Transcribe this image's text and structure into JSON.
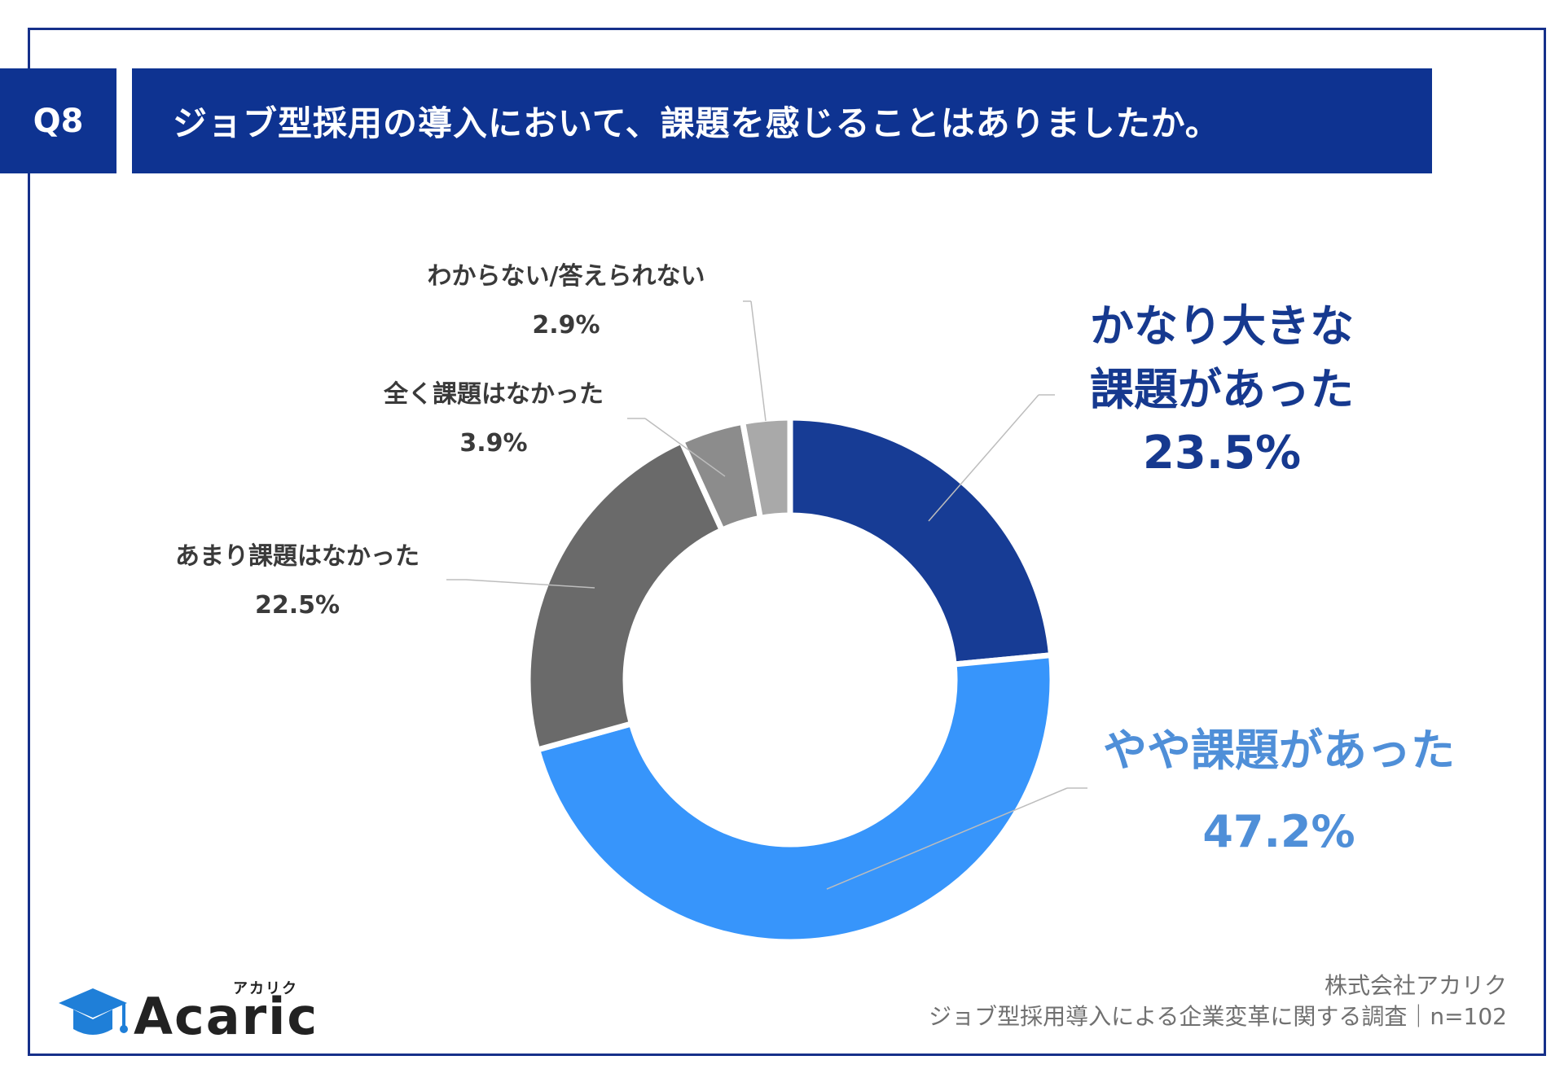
{
  "header": {
    "q_label": "Q8",
    "title": "ジョブ型採用の導入において、課題を感じることはありましたか。"
  },
  "chart_data": {
    "type": "pie",
    "variant": "donut",
    "title": "ジョブ型採用の導入において、課題を感じることはありましたか。",
    "start_angle_deg": 0,
    "direction": "clockwise",
    "slices": [
      {
        "name": "かなり大きな課題があった",
        "value": 23.5,
        "value_label": "23.5%",
        "color": "#173c95"
      },
      {
        "name": "やや課題があった",
        "value": 47.2,
        "value_label": "47.2%",
        "color": "#3795fb"
      },
      {
        "name": "あまり課題はなかった",
        "value": 22.5,
        "value_label": "22.5%",
        "color": "#6a6a6a"
      },
      {
        "name": "全く課題はなかった",
        "value": 3.9,
        "value_label": "3.9%",
        "color": "#8c8c8c"
      },
      {
        "name": "わからない/答えられない",
        "value": 2.9,
        "value_label": "2.9%",
        "color": "#a9a9a9"
      }
    ],
    "labels": {
      "s0": {
        "line1": "かなり大きな",
        "line2": "課題があった",
        "pct": "23.5%"
      },
      "s1": {
        "line1": "やや課題があった",
        "pct": "47.2%"
      },
      "s2": {
        "line1": "あまり課題はなかった",
        "pct": "22.5%"
      },
      "s3": {
        "line1": "全く課題はなかった",
        "pct": "3.9%"
      },
      "s4": {
        "line1": "わからない/答えられない",
        "pct": "2.9%"
      }
    }
  },
  "footer": {
    "company": "株式会社アカリク",
    "survey": "ジョブ型採用導入による企業変革に関する調査｜n=102",
    "logo_text": "Acaric",
    "logo_kana": "アカリク"
  },
  "colors": {
    "brand_navy": "#0e3391",
    "frame": "#16308a"
  }
}
